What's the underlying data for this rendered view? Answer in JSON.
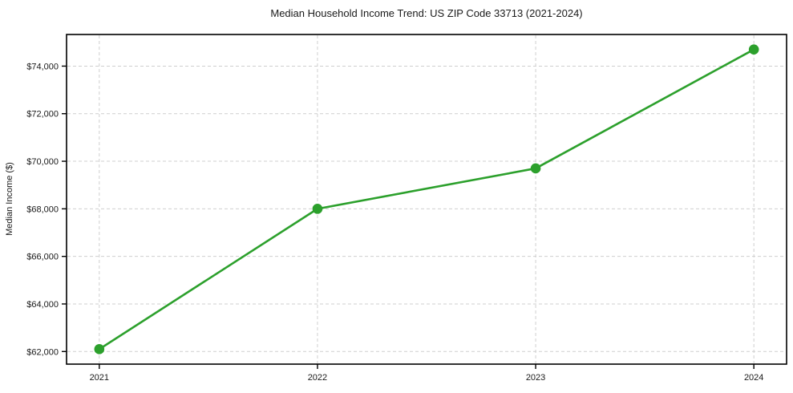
{
  "page": {
    "background_color": "#ffffff"
  },
  "chart_data": {
    "type": "line",
    "title": "Median Household Income Trend: US ZIP Code 33713 (2021-2024)",
    "xlabel": "",
    "ylabel": "Median Income ($)",
    "x": [
      2021,
      2022,
      2023,
      2024
    ],
    "x_tick_labels": [
      "2021",
      "2022",
      "2023",
      "2024"
    ],
    "series": [
      {
        "values": [
          62100,
          68000,
          69700,
          74700
        ],
        "color": "#2ca02c",
        "marker": "circle",
        "line_width": 2.6,
        "marker_radius": 6.3
      }
    ],
    "yticks": [
      {
        "value": 62000,
        "label": "$62,000"
      },
      {
        "value": 64000,
        "label": "$64,000"
      },
      {
        "value": 66000,
        "label": "$66,000"
      },
      {
        "value": 68000,
        "label": "$68,000"
      },
      {
        "value": 70000,
        "label": "$70,000"
      },
      {
        "value": 72000,
        "label": "$72,000"
      },
      {
        "value": 74000,
        "label": "$74,000"
      }
    ],
    "ylim": [
      61470,
      75330
    ],
    "xlim": [
      2020.85,
      2024.15
    ],
    "grid": {
      "show": true,
      "style": "dashed",
      "color": "#cfcfcf",
      "axes": "both"
    },
    "legend": {
      "show": false
    },
    "frame_color": "#000000",
    "text_color": "#1a1a1a"
  }
}
